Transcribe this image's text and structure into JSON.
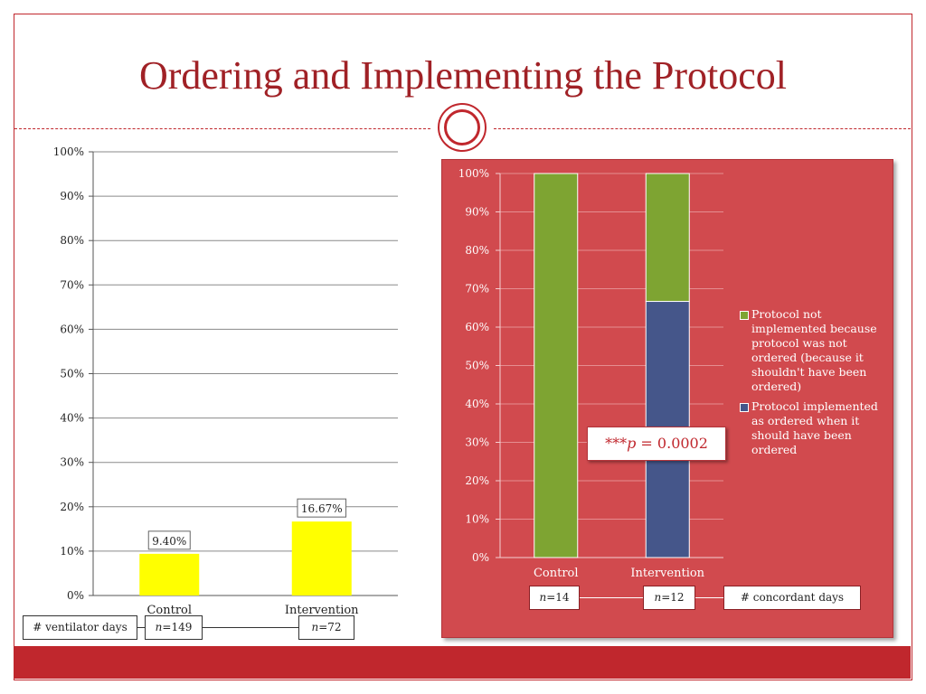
{
  "slide": {
    "title": "Ordering and Implementing the Protocol",
    "colors": {
      "accent": "#c0272d",
      "title": "#a02126",
      "panel": "#d14a4e"
    }
  },
  "chart_data": [
    {
      "type": "bar",
      "categories": [
        "Control",
        "Intervention"
      ],
      "values": [
        9.4,
        16.67
      ],
      "data_labels": [
        "9.40%",
        "16.67%"
      ],
      "ylim": [
        0,
        100
      ],
      "yticks": [
        "0%",
        "10%",
        "20%",
        "30%",
        "40%",
        "50%",
        "60%",
        "70%",
        "80%",
        "90%",
        "100%"
      ],
      "bar_color": "#ffff00",
      "grid": true,
      "annotations": {
        "row_label": "# ventilator days",
        "n_values": [
          "149",
          "72"
        ],
        "n_prefix": "n",
        "n_sep": "="
      }
    },
    {
      "type": "bar",
      "stacked": true,
      "categories": [
        "Control",
        "Intervention"
      ],
      "ylim": [
        0,
        100
      ],
      "yticks": [
        "0%",
        "10%",
        "20%",
        "30%",
        "40%",
        "50%",
        "60%",
        "70%",
        "80%",
        "90%",
        "100%"
      ],
      "grid": true,
      "legend_position": "right",
      "series": [
        {
          "name": "Protocol implemented as ordered when it should have been ordered",
          "values": [
            0,
            66.7
          ],
          "color": "#45568a"
        },
        {
          "name": "Protocol not implemented because protocol was not ordered (because it shouldn't have been ordered)",
          "values": [
            100,
            33.3
          ],
          "color": "#7ea432"
        }
      ],
      "annotations": {
        "p_prefix": "***",
        "p_symbol": "p",
        "p_rest": " = 0.0002",
        "row_label": "# concordant days",
        "n_values": [
          "14",
          "12"
        ],
        "n_prefix": "n",
        "n_sep": "="
      }
    }
  ]
}
